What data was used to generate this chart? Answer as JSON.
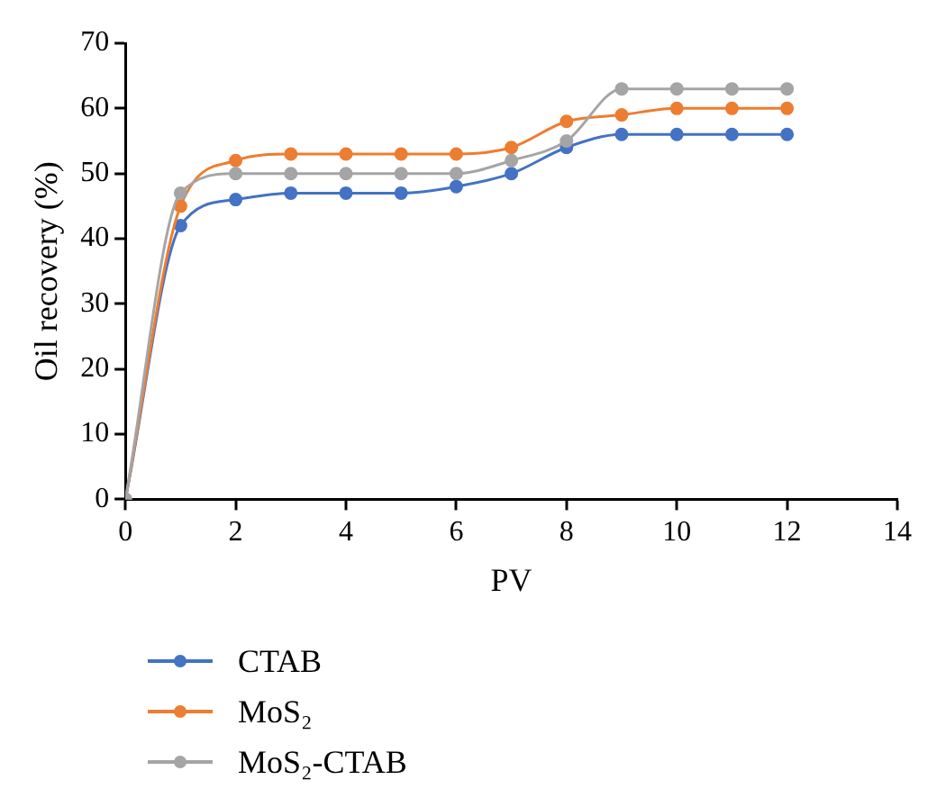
{
  "chart_data": {
    "type": "line",
    "xlabel": "PV",
    "ylabel": "Oil recovery (%)",
    "x": [
      0,
      1,
      2,
      3,
      4,
      5,
      6,
      7,
      8,
      9,
      10,
      11,
      12
    ],
    "series": [
      {
        "name": "CTAB",
        "color": "#4472c4",
        "values": [
          0,
          42,
          46,
          47,
          47,
          47,
          48,
          50,
          54,
          56,
          56,
          56,
          56
        ]
      },
      {
        "name": "MoS₂",
        "color": "#ed7d31",
        "values": [
          0,
          45,
          52,
          53,
          53,
          53,
          53,
          54,
          58,
          59,
          60,
          60,
          60
        ]
      },
      {
        "name": "MoS₂-CTAB",
        "color": "#a5a5a5",
        "values": [
          0,
          47,
          50,
          50,
          50,
          50,
          50,
          52,
          55,
          63,
          63,
          63,
          63
        ]
      }
    ],
    "xlim": [
      0,
      14
    ],
    "xticks": [
      0,
      2,
      4,
      6,
      8,
      10,
      12,
      14
    ],
    "ylim": [
      0,
      70
    ],
    "yticks": [
      0,
      10,
      20,
      30,
      40,
      50,
      60,
      70
    ],
    "grid": false,
    "legend": "bottom",
    "marker": "circle",
    "line_style": "solid"
  }
}
